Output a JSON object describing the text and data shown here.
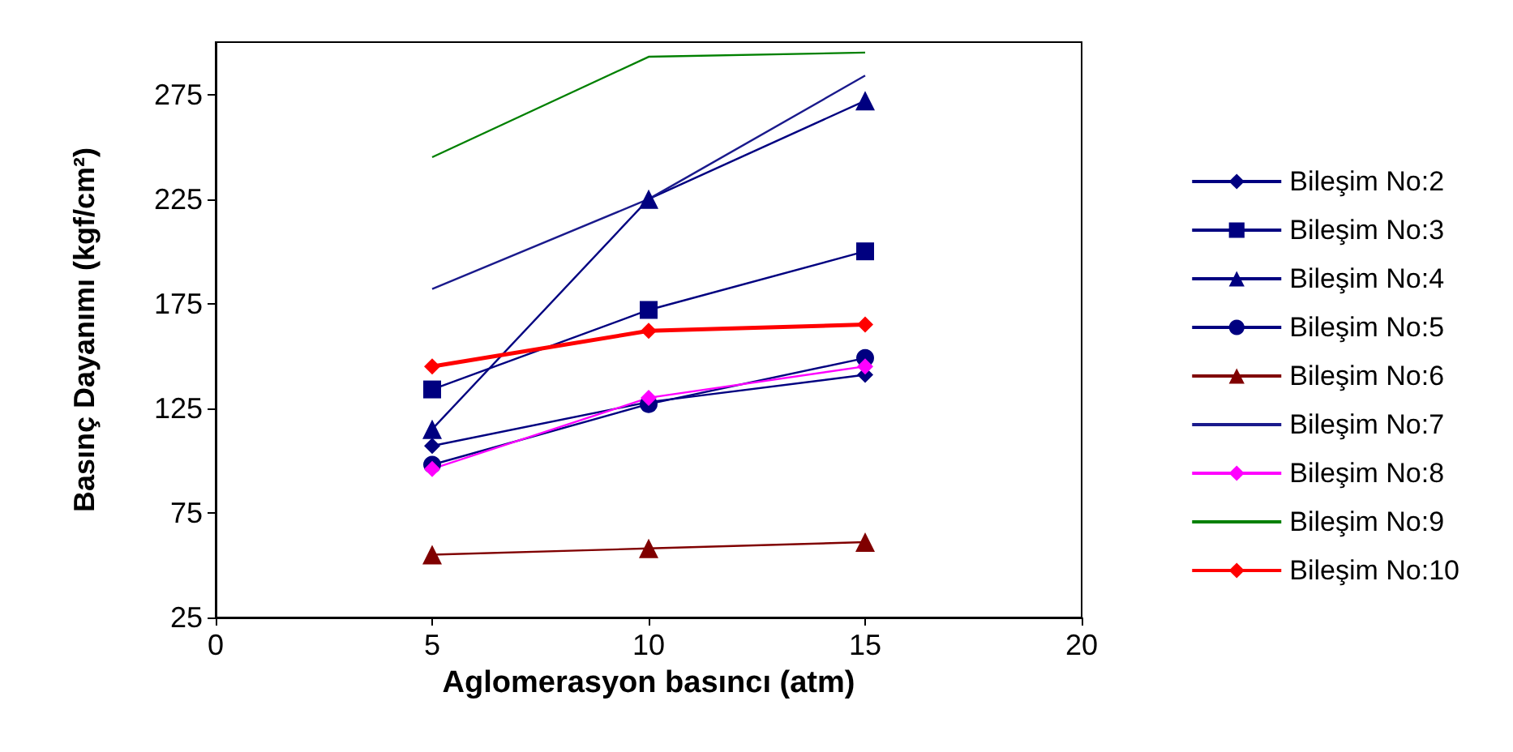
{
  "chart_data": {
    "type": "line",
    "xlabel": "Aglomerasyon basıncı (atm)",
    "ylabel": "Basınç Dayanımı (kgf/cm²)",
    "x": [
      5,
      10,
      15
    ],
    "xlim": [
      0,
      20
    ],
    "xticks": [
      0,
      5,
      10,
      15,
      20
    ],
    "ylim": [
      25,
      300
    ],
    "yticks": [
      25,
      75,
      125,
      175,
      225,
      275
    ],
    "grid": false,
    "legend": "right",
    "series": [
      {
        "name": "Bileşim No:2",
        "color": "#000080",
        "marker": "diamond",
        "values": [
          107,
          128,
          141
        ]
      },
      {
        "name": "Bileşim No:3",
        "color": "#000080",
        "marker": "square",
        "values": [
          134,
          172,
          200
        ]
      },
      {
        "name": "Bileşim No:4",
        "color": "#000080",
        "marker": "triangle",
        "values": [
          115,
          225,
          272
        ]
      },
      {
        "name": "Bileşim No:5",
        "color": "#000080",
        "marker": "circle",
        "values": [
          98,
          127,
          149
        ]
      },
      {
        "name": "Bileşim No:6",
        "color": "#800000",
        "marker": "triangle",
        "values": [
          55,
          58,
          61
        ]
      },
      {
        "name": "Bileşim No:7",
        "color": "#1a1a8c",
        "marker": "none",
        "values": [
          182,
          225,
          284
        ]
      },
      {
        "name": "Bileşim No:8",
        "color": "#ff00ff",
        "marker": "diamond",
        "values": [
          96,
          130,
          145
        ]
      },
      {
        "name": "Bileşim No:9",
        "color": "#008000",
        "marker": "none",
        "values": [
          245,
          293,
          295
        ]
      },
      {
        "name": "Bileşim No:10",
        "color": "#ff0000",
        "marker": "diamond",
        "values": [
          145,
          162,
          165
        ]
      }
    ]
  }
}
